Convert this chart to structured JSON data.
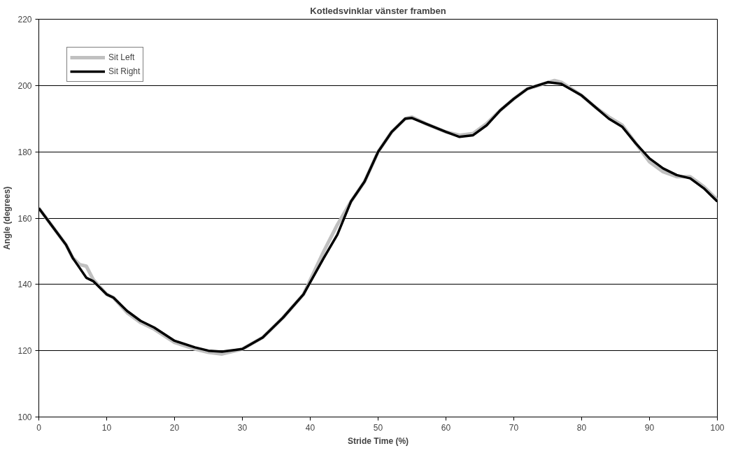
{
  "chart_data": {
    "type": "line",
    "title": "Kotledsvinklar vänster framben",
    "xlabel": "Stride Time (%)",
    "ylabel": "Angle (degrees)",
    "xlim": [
      0,
      100
    ],
    "xticks": [
      0,
      10,
      20,
      30,
      40,
      50,
      60,
      70,
      80,
      90,
      100
    ],
    "ylim": [
      100,
      220
    ],
    "yticks": [
      100,
      120,
      140,
      160,
      180,
      200,
      220
    ],
    "grid": "y",
    "legend": "top left",
    "marker": "none",
    "line_style": "solid",
    "series": [
      {
        "name": "Sit Left",
        "color": "#c0c0c0",
        "x": [
          0,
          2,
          4,
          5,
          6,
          7,
          8,
          10,
          11,
          13,
          15,
          17,
          20,
          23,
          25,
          27,
          30,
          33,
          36,
          39,
          42,
          44,
          46,
          48,
          50,
          52,
          54,
          55,
          57,
          60,
          62,
          64,
          66,
          68,
          70,
          72,
          76,
          77,
          80,
          82,
          84,
          86,
          88,
          90,
          92,
          94,
          96,
          98,
          100
        ],
        "values": [
          163,
          157.5,
          152,
          148,
          146,
          145.5,
          141.5,
          137,
          136,
          131.5,
          128.5,
          126.5,
          122.5,
          120.5,
          119.5,
          119,
          120.5,
          124,
          130,
          137,
          150,
          158,
          165,
          171,
          180,
          186,
          190,
          190.5,
          188.5,
          186,
          185,
          185.5,
          188.5,
          192.5,
          196,
          199,
          201.5,
          201,
          197,
          193.5,
          190.5,
          188,
          182.5,
          177,
          174,
          172.5,
          172.5,
          169.5,
          165.5
        ]
      },
      {
        "name": "Sit Right",
        "color": "#000000",
        "x": [
          0,
          2,
          4,
          5,
          6,
          7,
          8,
          10,
          11,
          13,
          15,
          17,
          20,
          23,
          25,
          27,
          30,
          33,
          36,
          39,
          42,
          44,
          46,
          48,
          50,
          52,
          54,
          55,
          57,
          60,
          62,
          64,
          66,
          68,
          70,
          72,
          75,
          77,
          80,
          82,
          84,
          86,
          88,
          90,
          92,
          94,
          96,
          98,
          100
        ],
        "values": [
          163,
          157.5,
          152,
          148,
          145,
          142,
          141,
          137,
          136,
          132,
          129,
          127,
          123,
          121,
          120,
          119.7,
          120.5,
          124,
          130,
          137,
          148,
          155,
          165,
          171,
          180,
          186,
          190,
          190.2,
          188.5,
          186,
          184.5,
          185,
          188,
          192.5,
          196,
          199,
          201,
          200.5,
          197,
          193.5,
          190,
          187.5,
          182.5,
          178,
          175,
          173,
          172,
          169,
          165
        ]
      }
    ]
  }
}
